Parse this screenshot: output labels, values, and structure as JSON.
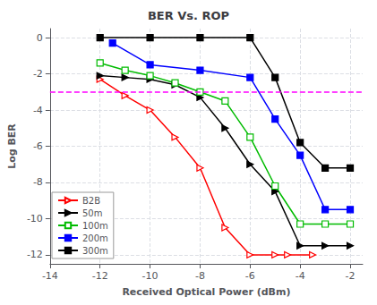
{
  "chart_data": {
    "type": "line",
    "title": "BER Vs. ROP",
    "x_label": "Received Optical Power (dBm)",
    "y_label": "Log BER",
    "xlim": [
      -14,
      -1.5
    ],
    "ylim": [
      -12.5,
      0.5
    ],
    "xticks": [
      -14,
      -12,
      -10,
      -8,
      -6,
      -4,
      -2
    ],
    "yticks": [
      0,
      -2,
      -4,
      -6,
      -8,
      -10,
      -12
    ],
    "grid": true,
    "legend": "lower left",
    "reference_line": {
      "y": -3.0,
      "color": "#FF00FF",
      "line_style": "dashed"
    },
    "series": [
      {
        "name": "B2B",
        "color": "#FF0000",
        "marker": "triangle-right-open",
        "x": [
          -12,
          -11,
          -10,
          -9,
          -8,
          -7,
          -6,
          -5,
          -4.5,
          -3.5
        ],
        "values": [
          -2.3,
          -3.2,
          -4.0,
          -5.5,
          -7.2,
          -10.5,
          -12.0,
          -12.0,
          -12.0,
          -12.0
        ]
      },
      {
        "name": "50m",
        "color": "#000000",
        "marker": "triangle-right",
        "x": [
          -12,
          -11,
          -10,
          -9,
          -8,
          -7,
          -6,
          -5,
          -4,
          -3,
          -2
        ],
        "values": [
          -2.1,
          -2.2,
          -2.3,
          -2.6,
          -3.3,
          -5.0,
          -7.0,
          -8.5,
          -11.5,
          -11.5,
          -11.5
        ]
      },
      {
        "name": "100m",
        "color": "#00BB00",
        "marker": "square-open",
        "x": [
          -12,
          -11,
          -10,
          -9,
          -8,
          -7,
          -6,
          -5,
          -4,
          -3,
          -2
        ],
        "values": [
          -1.4,
          -1.8,
          -2.1,
          -2.5,
          -3.0,
          -3.5,
          -5.5,
          -8.2,
          -10.3,
          -10.3,
          -10.3
        ]
      },
      {
        "name": "200m",
        "color": "#0000FF",
        "marker": "square",
        "x": [
          -11.5,
          -10,
          -8,
          -6,
          -5,
          -4,
          -3,
          -2
        ],
        "values": [
          -0.3,
          -1.5,
          -1.8,
          -2.2,
          -4.5,
          -6.5,
          -9.5,
          -9.5
        ]
      },
      {
        "name": "300m",
        "color": "#000000",
        "marker": "square",
        "x": [
          -12,
          -10,
          -8,
          -6,
          -5,
          -4,
          -3,
          -2
        ],
        "values": [
          0.0,
          0.0,
          0.0,
          0.0,
          -2.2,
          -5.8,
          -7.2,
          -7.2
        ]
      }
    ]
  }
}
